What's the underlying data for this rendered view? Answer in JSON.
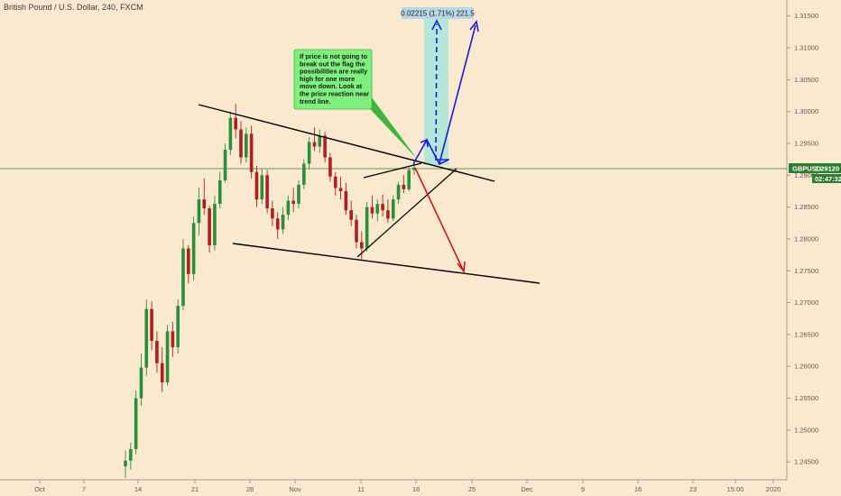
{
  "header": {
    "title": "British Pound / U.S. Dollar, 240, FXCM"
  },
  "chart_data": {
    "type": "candlestick",
    "symbol": "GBPUSD",
    "interval": "240",
    "source": "FXCM",
    "price_axis": {
      "range": [
        1.2422,
        1.3175
      ],
      "ticks": [
        "1.31500",
        "1.31000",
        "1.30500",
        "1.30000",
        "1.29500",
        "1.29000",
        "1.28500",
        "1.28000",
        "1.27500",
        "1.27000",
        "1.26500",
        "1.26000",
        "1.25500",
        "1.25000",
        "1.24500"
      ]
    },
    "time_axis": {
      "ticks": [
        "Oct",
        "7",
        "14",
        "21",
        "28",
        "Nov",
        "11",
        "18",
        "25",
        "Dec",
        "9",
        "16",
        "23",
        "15:00",
        "2020"
      ]
    },
    "current_price": {
      "symbol_label": "GBPUSD",
      "value": "1.29120",
      "countdown": "02:47:32",
      "color": "#2e7d32"
    },
    "candle_colors": {
      "up": "#2a8f3a",
      "down": "#b01e1e"
    },
    "candles": [
      [
        1.2443,
        1.2468,
        1.2425,
        1.2452
      ],
      [
        1.2452,
        1.248,
        1.2438,
        1.247
      ],
      [
        1.247,
        1.2562,
        1.2462,
        1.255
      ],
      [
        1.255,
        1.262,
        1.2538,
        1.2598
      ],
      [
        1.2598,
        1.2705,
        1.2585,
        1.269
      ],
      [
        1.269,
        1.2702,
        1.2625,
        1.264
      ],
      [
        1.264,
        1.2655,
        1.259,
        1.2605
      ],
      [
        1.2605,
        1.263,
        1.256,
        1.2575
      ],
      [
        1.2575,
        1.2665,
        1.257,
        1.2655
      ],
      [
        1.2655,
        1.267,
        1.2615,
        1.263
      ],
      [
        1.263,
        1.2705,
        1.262,
        1.2695
      ],
      [
        1.2695,
        1.28,
        1.2688,
        1.2785
      ],
      [
        1.2785,
        1.279,
        1.273,
        1.2745
      ],
      [
        1.2745,
        1.2835,
        1.2735,
        1.2825
      ],
      [
        1.2825,
        1.288,
        1.2805,
        1.2862
      ],
      [
        1.2862,
        1.2895,
        1.2838,
        1.2848
      ],
      [
        1.2848,
        1.2852,
        1.2778,
        1.279
      ],
      [
        1.279,
        1.2868,
        1.2782,
        1.2855
      ],
      [
        1.2855,
        1.2905,
        1.2848,
        1.2892
      ],
      [
        1.2892,
        1.295,
        1.2888,
        1.294
      ],
      [
        1.294,
        1.3,
        1.2932,
        1.299
      ],
      [
        1.299,
        1.3012,
        1.2958,
        1.2972
      ],
      [
        1.2972,
        1.2985,
        1.2918,
        1.2928
      ],
      [
        1.2928,
        1.2975,
        1.292,
        1.2965
      ],
      [
        1.2965,
        1.2978,
        1.2895,
        1.2905
      ],
      [
        1.2905,
        1.2915,
        1.285,
        1.2862
      ],
      [
        1.2862,
        1.291,
        1.2855,
        1.29
      ],
      [
        1.29,
        1.2908,
        1.284,
        1.2848
      ],
      [
        1.2848,
        1.286,
        1.282,
        1.2832
      ],
      [
        1.2832,
        1.2842,
        1.28,
        1.2815
      ],
      [
        1.2815,
        1.285,
        1.2808,
        1.2838
      ],
      [
        1.2838,
        1.2868,
        1.283,
        1.286
      ],
      [
        1.286,
        1.288,
        1.2842,
        1.2855
      ],
      [
        1.2855,
        1.2892,
        1.2848,
        1.2885
      ],
      [
        1.2885,
        1.2925,
        1.2878,
        1.2918
      ],
      [
        1.2918,
        1.296,
        1.291,
        1.2952
      ],
      [
        1.2952,
        1.2975,
        1.2938,
        1.2945
      ],
      [
        1.2945,
        1.2972,
        1.2935,
        1.2962
      ],
      [
        1.2962,
        1.2968,
        1.292,
        1.2928
      ],
      [
        1.2928,
        1.2935,
        1.289,
        1.2898
      ],
      [
        1.2898,
        1.2905,
        1.2868,
        1.288
      ],
      [
        1.288,
        1.2898,
        1.2862,
        1.2875
      ],
      [
        1.2875,
        1.2888,
        1.2838,
        1.2845
      ],
      [
        1.2845,
        1.286,
        1.282,
        1.283
      ],
      [
        1.283,
        1.2838,
        1.2785,
        1.2795
      ],
      [
        1.2795,
        1.2812,
        1.2768,
        1.2785
      ],
      [
        1.2785,
        1.2858,
        1.278,
        1.285
      ],
      [
        1.285,
        1.2868,
        1.2832,
        1.284
      ],
      [
        1.284,
        1.2862,
        1.2828,
        1.2855
      ],
      [
        1.2855,
        1.287,
        1.2835,
        1.2845
      ],
      [
        1.2845,
        1.2862,
        1.2825,
        1.2832
      ],
      [
        1.2832,
        1.2868,
        1.2828,
        1.2862
      ],
      [
        1.2862,
        1.289,
        1.2855,
        1.2885
      ],
      [
        1.2885,
        1.29,
        1.2872,
        1.2878
      ],
      [
        1.2878,
        1.2912,
        1.2875,
        1.2908
      ],
      [
        1.2908,
        1.2925,
        1.29,
        1.2912
      ]
    ],
    "annotations": {
      "note": [
        "If price is not going to",
        "break out the flag the",
        "possibilities are really",
        "high for one more",
        "move down. Look at",
        "the price reaction near",
        "trend line."
      ],
      "measure_label": "0.02215 (1.71%) 221.5",
      "colors": {
        "arrow_up": "#1c1cd6",
        "arrow_down": "#d31515",
        "note_bg": "#7df07d",
        "measure_bg": "#a7e6dc"
      }
    }
  }
}
